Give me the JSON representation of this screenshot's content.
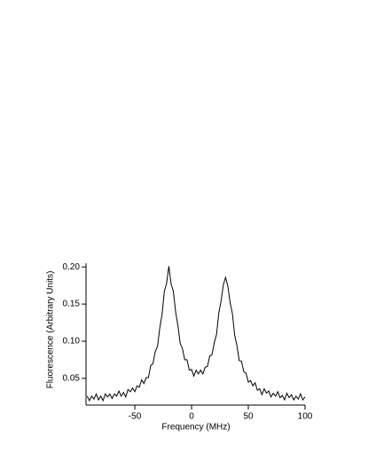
{
  "chart_data": {
    "type": "line",
    "x_label": "Frequency (MHz)",
    "y_label": "Fluorescence (Arbitrary Units)",
    "color": "#000000",
    "x": [
      -92,
      -90,
      -88,
      -86,
      -84,
      -82,
      -80,
      -78,
      -76,
      -74,
      -72,
      -70,
      -68,
      -66,
      -64,
      -62,
      -60,
      -58,
      -56,
      -54,
      -52,
      -50,
      -48,
      -46,
      -44,
      -42,
      -40,
      -38,
      -36,
      -34,
      -32,
      -30,
      -28,
      -26,
      -24,
      -22,
      -20,
      -18,
      -16,
      -14,
      -12,
      -10,
      -8,
      -6,
      -4,
      -2,
      0,
      2,
      4,
      6,
      8,
      10,
      12,
      14,
      16,
      18,
      20,
      22,
      24,
      26,
      28,
      30,
      32,
      34,
      36,
      38,
      40,
      42,
      44,
      46,
      48,
      50,
      52,
      54,
      56,
      58,
      60,
      62,
      64,
      66,
      68,
      70,
      72,
      74,
      76,
      78,
      80,
      82,
      84,
      86,
      88,
      90,
      92,
      94,
      96,
      98,
      100
    ],
    "values": [
      0.026,
      0.02,
      0.026,
      0.022,
      0.029,
      0.021,
      0.026,
      0.02,
      0.029,
      0.025,
      0.029,
      0.023,
      0.029,
      0.026,
      0.033,
      0.026,
      0.031,
      0.025,
      0.035,
      0.032,
      0.037,
      0.032,
      0.04,
      0.038,
      0.048,
      0.043,
      0.051,
      0.051,
      0.067,
      0.07,
      0.086,
      0.093,
      0.118,
      0.136,
      0.167,
      0.178,
      0.201,
      0.177,
      0.167,
      0.139,
      0.121,
      0.097,
      0.09,
      0.075,
      0.075,
      0.061,
      0.062,
      0.053,
      0.061,
      0.056,
      0.061,
      0.056,
      0.065,
      0.066,
      0.08,
      0.082,
      0.098,
      0.109,
      0.138,
      0.154,
      0.176,
      0.186,
      0.174,
      0.152,
      0.137,
      0.108,
      0.094,
      0.074,
      0.073,
      0.059,
      0.057,
      0.045,
      0.047,
      0.04,
      0.044,
      0.034,
      0.036,
      0.028,
      0.036,
      0.03,
      0.033,
      0.025,
      0.03,
      0.026,
      0.032,
      0.024,
      0.027,
      0.021,
      0.03,
      0.024,
      0.028,
      0.021,
      0.026,
      0.022,
      0.029,
      0.021,
      0.025
    ],
    "xlim": [
      -93,
      100
    ],
    "ylim": [
      0.014,
      0.205
    ],
    "xticks": [
      -50,
      0,
      50,
      100
    ],
    "yticks": [
      0.05,
      {
        "value": 0.1,
        "label": "0.10"
      },
      0.15,
      {
        "value": 0.2,
        "label": "0.20"
      }
    ]
  }
}
